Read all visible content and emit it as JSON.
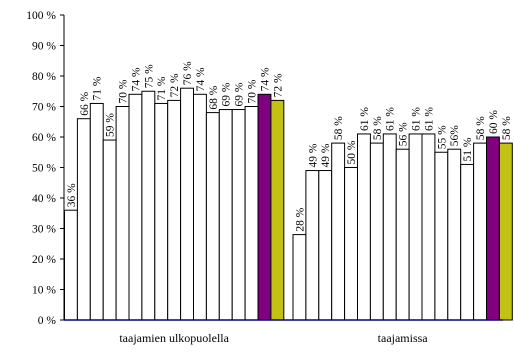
{
  "chart_data": {
    "type": "bar",
    "ylim": [
      0,
      100
    ],
    "y_ticks": [
      0,
      10,
      20,
      30,
      40,
      50,
      60,
      70,
      80,
      90,
      100
    ],
    "y_tick_labels": [
      "0 %",
      "10 %",
      "20 %",
      "30 %",
      "40 %",
      "50 %",
      "60 %",
      "70 %",
      "80 %",
      "90 %",
      "100 %"
    ],
    "grid": false,
    "legend": "none",
    "groups": [
      {
        "label": "taajamien ulkopuolella",
        "values": [
          36,
          66,
          71,
          59,
          70,
          74,
          75,
          71,
          72,
          76,
          74,
          68,
          69,
          69,
          70,
          74,
          72
        ],
        "value_labels": [
          "36 %",
          "66 %",
          "71 %",
          "59 %",
          "70 %",
          "74 %",
          "75 %",
          "71 %",
          "72 %",
          "76 %",
          "74 %",
          "68 %",
          "69 %",
          "69 %",
          "70 %",
          "74 %",
          "72 %"
        ]
      },
      {
        "label": "taajamissa",
        "values": [
          28,
          49,
          49,
          58,
          50,
          61,
          58,
          61,
          56,
          61,
          61,
          55,
          56,
          51,
          58,
          60,
          58
        ],
        "value_labels": [
          "28 %",
          "49 %",
          "49 %",
          "58 %",
          "50 %",
          "61 %",
          "58 %",
          "61 %",
          "56 %",
          "61 %",
          "61 %",
          "55 %",
          "56%",
          "51 %",
          "58 %",
          "60 %",
          "58 %"
        ]
      }
    ],
    "colors": {
      "default_bar": "#ffffff",
      "highlight_1": "#800080",
      "highlight_2": "#c2c214",
      "bar_edge": "#000000",
      "axis": "#000000",
      "category_axis": "#000080"
    },
    "highlight_bars": {
      "15": "highlight_1",
      "16": "highlight_2"
    }
  }
}
